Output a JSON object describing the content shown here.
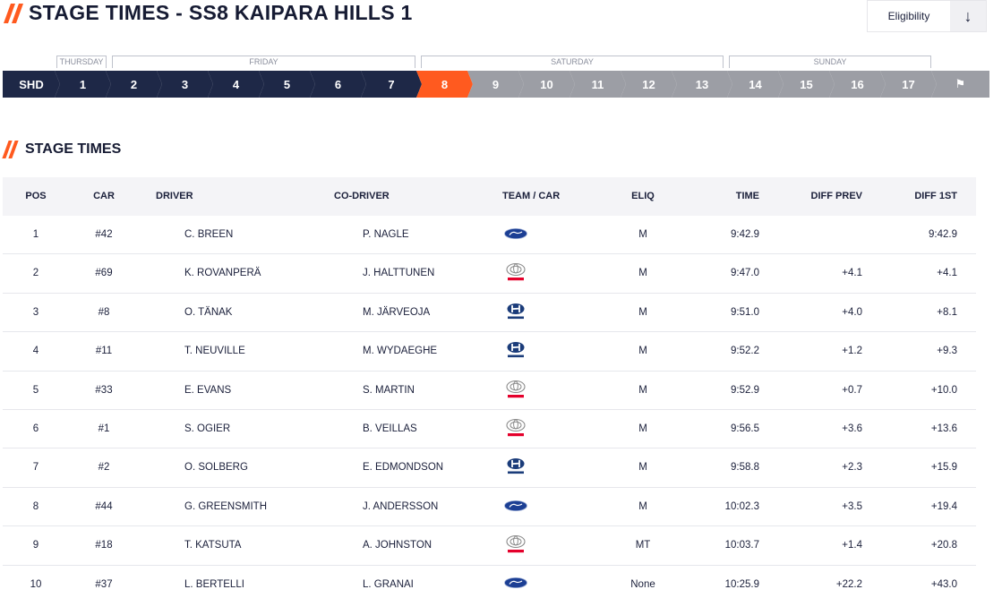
{
  "header": {
    "title": "STAGE TIMES - SS8 KAIPARA HILLS 1",
    "eligibility_label": "Eligibility",
    "eligibility_icon": "arrow-down-icon"
  },
  "days": [
    {
      "label": "THURSDAY"
    },
    {
      "label": "FRIDAY"
    },
    {
      "label": "SATURDAY"
    },
    {
      "label": "SUNDAY"
    }
  ],
  "stages": [
    {
      "label": "SHD",
      "state": "done"
    },
    {
      "label": "1",
      "state": "done"
    },
    {
      "label": "2",
      "state": "done"
    },
    {
      "label": "3",
      "state": "done"
    },
    {
      "label": "4",
      "state": "done"
    },
    {
      "label": "5",
      "state": "done"
    },
    {
      "label": "6",
      "state": "done"
    },
    {
      "label": "7",
      "state": "done"
    },
    {
      "label": "8",
      "state": "current"
    },
    {
      "label": "9",
      "state": "future"
    },
    {
      "label": "10",
      "state": "future"
    },
    {
      "label": "11",
      "state": "future"
    },
    {
      "label": "12",
      "state": "future"
    },
    {
      "label": "13",
      "state": "future"
    },
    {
      "label": "14",
      "state": "future"
    },
    {
      "label": "15",
      "state": "future"
    },
    {
      "label": "16",
      "state": "future"
    },
    {
      "label": "17",
      "state": "future"
    },
    {
      "label": "⚑",
      "state": "future",
      "icon": "finish-flag-icon"
    }
  ],
  "colors": {
    "accent": "#ff5a1f",
    "done": "#1e2847",
    "future": "#9c9ea5"
  },
  "section": {
    "title": "STAGE TIMES"
  },
  "columns": {
    "pos": "POS",
    "car": "CAR",
    "driver": "DRIVER",
    "codriver": "CO-DRIVER",
    "team": "TEAM / CAR",
    "eliq": "ELIQ",
    "time": "TIME",
    "diff_prev": "DIFF PREV",
    "diff_1st": "DIFF 1ST"
  },
  "rows": [
    {
      "pos": "1",
      "car": "#42",
      "driver": "C. BREEN",
      "driver_flag": "ireland-flag-icon",
      "codriver": "P. NAGLE",
      "codriver_flag": "ireland-flag-icon",
      "team": "ford-logo-icon",
      "eliq": "M",
      "time": "9:42.9",
      "diff_prev": "",
      "diff_1st": "9:42.9"
    },
    {
      "pos": "2",
      "car": "#69",
      "driver": "K. ROVANPERÄ",
      "driver_flag": "finland-flag-icon",
      "codriver": "J. HALTTUNEN",
      "codriver_flag": "finland-flag-icon",
      "team": "toyota-logo-icon",
      "eliq": "M",
      "time": "9:47.0",
      "diff_prev": "+4.1",
      "diff_1st": "+4.1"
    },
    {
      "pos": "3",
      "car": "#8",
      "driver": "O. TÄNAK",
      "driver_flag": "estonia-flag-icon",
      "codriver": "M. JÄRVEOJA",
      "codriver_flag": "estonia-flag-icon",
      "team": "hyundai-logo-icon",
      "eliq": "M",
      "time": "9:51.0",
      "diff_prev": "+4.0",
      "diff_1st": "+8.1"
    },
    {
      "pos": "4",
      "car": "#11",
      "driver": "T. NEUVILLE",
      "driver_flag": "belgium-flag-icon",
      "codriver": "M. WYDAEGHE",
      "codriver_flag": "belgium-flag-icon",
      "team": "hyundai-logo-icon",
      "eliq": "M",
      "time": "9:52.2",
      "diff_prev": "+1.2",
      "diff_1st": "+9.3"
    },
    {
      "pos": "5",
      "car": "#33",
      "driver": "E. EVANS",
      "driver_flag": "uk-flag-icon",
      "codriver": "S. MARTIN",
      "codriver_flag": "uk-flag-icon",
      "team": "toyota-logo-icon",
      "eliq": "M",
      "time": "9:52.9",
      "diff_prev": "+0.7",
      "diff_1st": "+10.0"
    },
    {
      "pos": "6",
      "car": "#1",
      "driver": "S. OGIER",
      "driver_flag": "france-flag-icon",
      "codriver": "B. VEILLAS",
      "codriver_flag": "france-flag-icon",
      "team": "toyota-logo-icon",
      "eliq": "M",
      "time": "9:56.5",
      "diff_prev": "+3.6",
      "diff_1st": "+13.6"
    },
    {
      "pos": "7",
      "car": "#2",
      "driver": "O. SOLBERG",
      "driver_flag": "sweden-flag-icon",
      "codriver": "E. EDMONDSON",
      "codriver_flag": "uk-flag-icon",
      "team": "hyundai-logo-icon",
      "eliq": "M",
      "time": "9:58.8",
      "diff_prev": "+2.3",
      "diff_1st": "+15.9"
    },
    {
      "pos": "8",
      "car": "#44",
      "driver": "G. GREENSMITH",
      "driver_flag": "uk-flag-icon",
      "codriver": "J. ANDERSSON",
      "codriver_flag": "sweden-flag-icon",
      "team": "ford-logo-icon",
      "eliq": "M",
      "time": "10:02.3",
      "diff_prev": "+3.5",
      "diff_1st": "+19.4"
    },
    {
      "pos": "9",
      "car": "#18",
      "driver": "T. KATSUTA",
      "driver_flag": "japan-flag-icon",
      "codriver": "A. JOHNSTON",
      "codriver_flag": "ireland-flag-icon",
      "team": "toyota-logo-icon",
      "eliq": "MT",
      "time": "10:03.7",
      "diff_prev": "+1.4",
      "diff_1st": "+20.8"
    },
    {
      "pos": "10",
      "car": "#37",
      "driver": "L. BERTELLI",
      "driver_flag": "italy-flag-icon",
      "codriver": "L. GRANAI",
      "codriver_flag": "italy-flag-icon",
      "team": "ford-logo-icon",
      "eliq": "None",
      "time": "10:25.9",
      "diff_prev": "+22.2",
      "diff_1st": "+43.0"
    }
  ]
}
